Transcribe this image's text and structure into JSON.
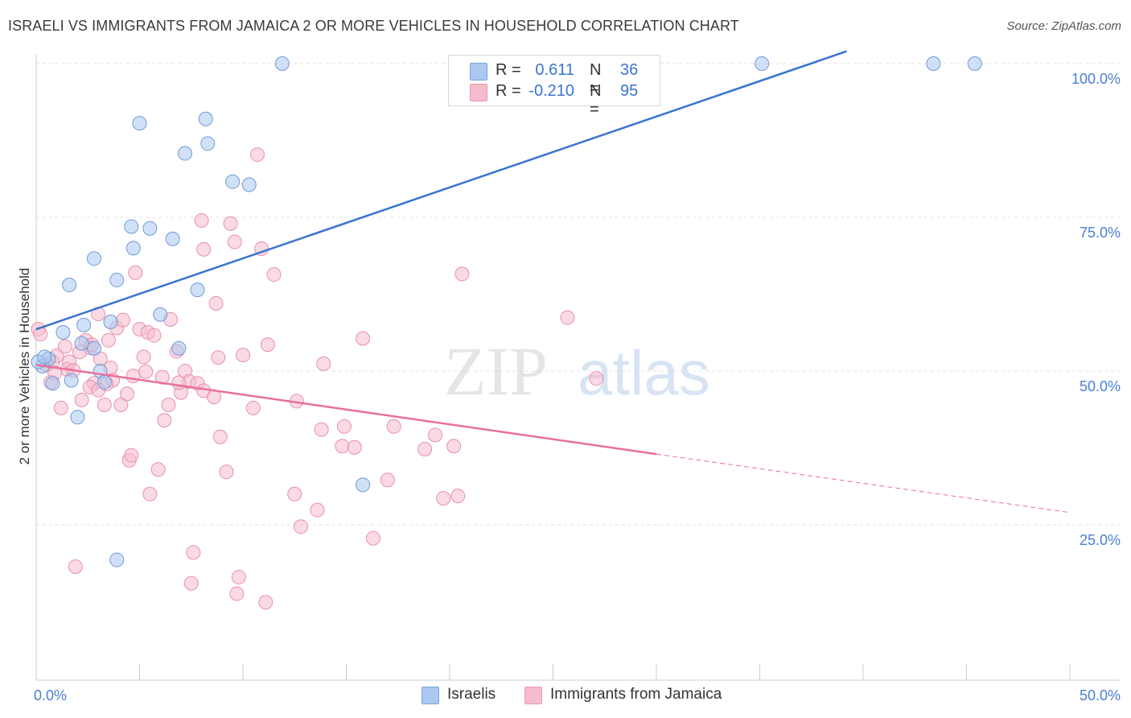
{
  "title": "ISRAELI VS IMMIGRANTS FROM JAMAICA 2 OR MORE VEHICLES IN HOUSEHOLD CORRELATION CHART",
  "source": "Source: ZipAtlas.com",
  "watermark": {
    "zip": "ZIP",
    "atlas": "atlas"
  },
  "legend": {
    "rows": [
      {
        "r_label": "R =",
        "r_value": "0.611",
        "n_label": "N =",
        "n_value": "36",
        "color": "#aac8f0"
      },
      {
        "r_label": "R =",
        "r_value": "-0.210",
        "n_label": "N =",
        "n_value": "95",
        "color": "#f6bccd"
      }
    ]
  },
  "bottom_legend": {
    "israelis": "Israelis",
    "jamaica": "Immigrants from Jamaica"
  },
  "chart_data": {
    "type": "scatter",
    "title": "",
    "xlabel": "",
    "ylabel": "2 or more Vehicles in Household",
    "xlim": [
      0,
      50
    ],
    "ylim": [
      0,
      102
    ],
    "x_tick_labels": [
      "0.0%",
      "50.0%"
    ],
    "y_tick_labels": [
      "25.0%",
      "50.0%",
      "75.0%",
      "100.0%"
    ],
    "y_tick_values": [
      25,
      50,
      75,
      100
    ],
    "grid": true,
    "legend_position": "top-center",
    "colors": {
      "israelis": "#3a74d0",
      "israelis_fill": "#aac8f0",
      "jamaica": "#e8709a",
      "jamaica_fill": "#f6bccd"
    },
    "series": [
      {
        "name": "Israelis",
        "points": [
          [
            0.3,
            50.8
          ],
          [
            0.6,
            52.0
          ],
          [
            0.8,
            48.0
          ],
          [
            1.3,
            56.3
          ],
          [
            1.6,
            64.0
          ],
          [
            1.7,
            48.5
          ],
          [
            2.0,
            42.5
          ],
          [
            2.3,
            57.5
          ],
          [
            2.8,
            53.7
          ],
          [
            2.8,
            68.3
          ],
          [
            3.1,
            50.0
          ],
          [
            3.3,
            48.2
          ],
          [
            3.6,
            58.0
          ],
          [
            3.9,
            64.8
          ],
          [
            3.9,
            19.3
          ],
          [
            4.6,
            73.5
          ],
          [
            4.7,
            70.0
          ],
          [
            5.0,
            90.3
          ],
          [
            5.5,
            73.2
          ],
          [
            6.0,
            59.2
          ],
          [
            6.6,
            71.5
          ],
          [
            6.9,
            53.7
          ],
          [
            7.2,
            85.4
          ],
          [
            7.8,
            63.2
          ],
          [
            8.2,
            91.0
          ],
          [
            8.3,
            87.0
          ],
          [
            9.5,
            80.8
          ],
          [
            10.3,
            80.3
          ],
          [
            11.9,
            100.0
          ],
          [
            15.8,
            31.5
          ],
          [
            35.1,
            100.0
          ],
          [
            43.4,
            100.0
          ],
          [
            45.4,
            100.0
          ],
          [
            0.1,
            51.5
          ],
          [
            0.4,
            52.3
          ],
          [
            2.2,
            54.5
          ]
        ]
      },
      {
        "name": "Immigrants from Jamaica",
        "points": [
          [
            0.1,
            56.8
          ],
          [
            0.2,
            56.0
          ],
          [
            0.5,
            51.0
          ],
          [
            0.7,
            48.2
          ],
          [
            0.8,
            51.5
          ],
          [
            1.0,
            52.5
          ],
          [
            1.2,
            44.0
          ],
          [
            1.4,
            54.0
          ],
          [
            1.5,
            50.3
          ],
          [
            1.6,
            51.5
          ],
          [
            1.9,
            18.2
          ],
          [
            2.2,
            45.3
          ],
          [
            2.4,
            55.0
          ],
          [
            2.6,
            53.8
          ],
          [
            2.7,
            54.3
          ],
          [
            2.8,
            48.0
          ],
          [
            3.0,
            59.3
          ],
          [
            3.1,
            52.0
          ],
          [
            3.3,
            44.5
          ],
          [
            3.5,
            55.0
          ],
          [
            3.6,
            50.5
          ],
          [
            3.7,
            48.5
          ],
          [
            3.9,
            57.0
          ],
          [
            4.1,
            44.5
          ],
          [
            4.2,
            58.3
          ],
          [
            4.4,
            46.3
          ],
          [
            4.5,
            35.5
          ],
          [
            4.6,
            36.3
          ],
          [
            4.8,
            66.0
          ],
          [
            5.0,
            56.8
          ],
          [
            5.2,
            52.3
          ],
          [
            5.4,
            56.3
          ],
          [
            5.5,
            30.0
          ],
          [
            5.7,
            55.8
          ],
          [
            5.9,
            34.0
          ],
          [
            6.1,
            49.0
          ],
          [
            6.2,
            42.0
          ],
          [
            6.4,
            44.5
          ],
          [
            6.5,
            58.4
          ],
          [
            6.8,
            53.2
          ],
          [
            7.0,
            46.5
          ],
          [
            7.2,
            50.0
          ],
          [
            7.4,
            48.3
          ],
          [
            7.5,
            15.5
          ],
          [
            7.6,
            20.5
          ],
          [
            7.8,
            48.0
          ],
          [
            8.0,
            74.5
          ],
          [
            8.1,
            69.8
          ],
          [
            8.1,
            46.8
          ],
          [
            8.6,
            45.8
          ],
          [
            8.7,
            61.0
          ],
          [
            8.8,
            52.2
          ],
          [
            8.9,
            39.3
          ],
          [
            9.2,
            33.6
          ],
          [
            9.4,
            74.0
          ],
          [
            9.6,
            71.0
          ],
          [
            9.7,
            13.8
          ],
          [
            9.8,
            16.5
          ],
          [
            10.0,
            52.6
          ],
          [
            10.5,
            44.0
          ],
          [
            10.7,
            85.2
          ],
          [
            10.9,
            69.9
          ],
          [
            11.1,
            12.4
          ],
          [
            11.2,
            54.3
          ],
          [
            11.5,
            65.7
          ],
          [
            12.5,
            30.0
          ],
          [
            12.6,
            45.1
          ],
          [
            12.8,
            24.7
          ],
          [
            13.6,
            27.4
          ],
          [
            13.8,
            40.5
          ],
          [
            13.9,
            51.2
          ],
          [
            14.8,
            37.8
          ],
          [
            14.9,
            41.0
          ],
          [
            15.4,
            37.6
          ],
          [
            15.8,
            55.3
          ],
          [
            16.3,
            22.8
          ],
          [
            17.0,
            32.3
          ],
          [
            17.3,
            41.0
          ],
          [
            18.8,
            37.3
          ],
          [
            19.3,
            39.6
          ],
          [
            19.7,
            29.3
          ],
          [
            20.2,
            37.8
          ],
          [
            20.4,
            29.7
          ],
          [
            20.6,
            65.8
          ],
          [
            25.7,
            58.7
          ],
          [
            27.1,
            48.8
          ],
          [
            2.6,
            47.4
          ],
          [
            3.4,
            47.9
          ],
          [
            4.7,
            49.2
          ],
          [
            6.9,
            48.1
          ],
          [
            1.8,
            50.1
          ],
          [
            0.9,
            49.7
          ],
          [
            5.3,
            49.9
          ],
          [
            2.1,
            53.1
          ],
          [
            3.0,
            46.9
          ]
        ]
      }
    ],
    "trend_lines": [
      {
        "series": "Israelis",
        "x": [
          0,
          39.2
        ],
        "y": [
          56.8,
          102.0
        ],
        "style": "solid"
      },
      {
        "series": "Immigrants from Jamaica",
        "x": [
          0,
          30
        ],
        "y": [
          51.0,
          36.5
        ],
        "style": "solid"
      },
      {
        "series": "Immigrants from Jamaica",
        "x": [
          30,
          50
        ],
        "y": [
          36.5,
          27.0
        ],
        "style": "dashed"
      }
    ]
  }
}
